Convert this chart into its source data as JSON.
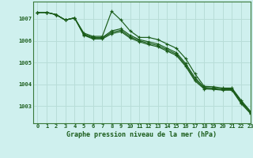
{
  "title": "Graphe pression niveau de la mer (hPa)",
  "background_color": "#cff0ee",
  "grid_color": "#b8ddd8",
  "line_color": "#1a5c1a",
  "xlim": [
    -0.5,
    23
  ],
  "ylim": [
    1002.2,
    1007.8
  ],
  "yticks": [
    1003,
    1004,
    1005,
    1006,
    1007
  ],
  "xticks": [
    0,
    1,
    2,
    3,
    4,
    5,
    6,
    7,
    8,
    9,
    10,
    11,
    12,
    13,
    14,
    15,
    16,
    17,
    18,
    19,
    20,
    21,
    22,
    23
  ],
  "series": [
    [
      1007.3,
      1007.3,
      1007.2,
      1006.95,
      1007.05,
      1006.35,
      1006.2,
      1006.2,
      1007.35,
      1006.95,
      1006.45,
      1006.15,
      1006.15,
      1006.05,
      1005.85,
      1005.65,
      1005.18,
      1004.48,
      1003.9,
      1003.88,
      1003.82,
      1003.82,
      1003.25,
      1002.75
    ],
    [
      1007.3,
      1007.3,
      1007.2,
      1006.95,
      1007.05,
      1006.3,
      1006.15,
      1006.15,
      1006.45,
      1006.55,
      1006.25,
      1006.05,
      1005.95,
      1005.85,
      1005.65,
      1005.45,
      1004.95,
      1004.3,
      1003.85,
      1003.82,
      1003.78,
      1003.78,
      1003.2,
      1002.72
    ],
    [
      1007.3,
      1007.3,
      1007.2,
      1006.95,
      1007.05,
      1006.28,
      1006.12,
      1006.12,
      1006.38,
      1006.48,
      1006.18,
      1006.0,
      1005.88,
      1005.78,
      1005.58,
      1005.38,
      1004.88,
      1004.22,
      1003.82,
      1003.79,
      1003.75,
      1003.75,
      1003.15,
      1002.68
    ],
    [
      1007.3,
      1007.3,
      1007.2,
      1006.95,
      1007.05,
      1006.25,
      1006.08,
      1006.08,
      1006.32,
      1006.42,
      1006.12,
      1005.95,
      1005.82,
      1005.72,
      1005.52,
      1005.32,
      1004.82,
      1004.15,
      1003.78,
      1003.76,
      1003.72,
      1003.72,
      1003.1,
      1002.65
    ]
  ]
}
